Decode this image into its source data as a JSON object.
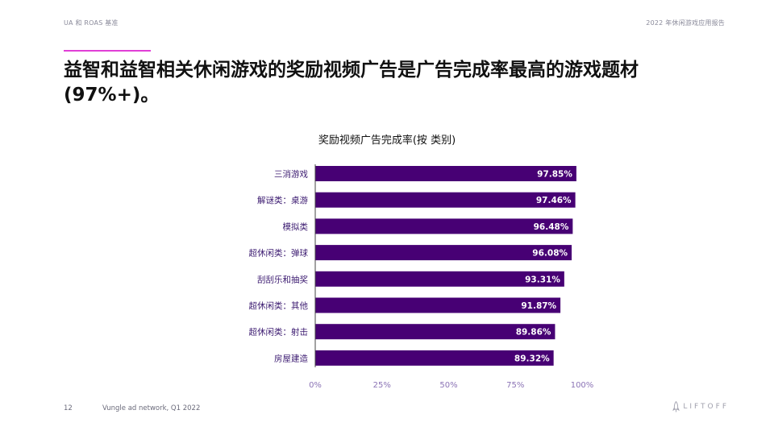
{
  "header": {
    "left": "UA 和 ROAS 基准",
    "right": "2022 年休闲游戏应用报告"
  },
  "title": "益智和益智相关休闲游戏的奖励视频广告是广告完成率最高的游戏题材 (97%+)。",
  "footer": {
    "page": "12",
    "source": "Vungle ad network, Q1 2022",
    "logo_text": "LIFTOFF"
  },
  "colors": {
    "bar": "#470074",
    "accent": "#e13fd6",
    "axis_label": "#8b73b5"
  },
  "chart_data": {
    "type": "bar",
    "orientation": "horizontal",
    "title": "奖励视频广告完成率(按 类别)",
    "categories": [
      "三消游戏",
      "解谜类：桌游",
      "模拟类",
      "超休闲类：弹球",
      "刮刮乐和抽奖",
      "超休闲类：其他",
      "超休闲类：射击",
      "房屋建造"
    ],
    "values": [
      97.85,
      97.46,
      96.48,
      96.08,
      93.31,
      91.87,
      89.86,
      89.32
    ],
    "value_labels": [
      "97.85%",
      "97.46%",
      "96.48%",
      "96.08%",
      "93.31%",
      "91.87%",
      "89.86%",
      "89.32%"
    ],
    "xlim": [
      0,
      100
    ],
    "xticks": [
      0,
      25,
      50,
      75,
      100
    ],
    "xtick_labels": [
      "0%",
      "25%",
      "50%",
      "75%",
      "100%"
    ],
    "grid": false,
    "legend": "none"
  }
}
